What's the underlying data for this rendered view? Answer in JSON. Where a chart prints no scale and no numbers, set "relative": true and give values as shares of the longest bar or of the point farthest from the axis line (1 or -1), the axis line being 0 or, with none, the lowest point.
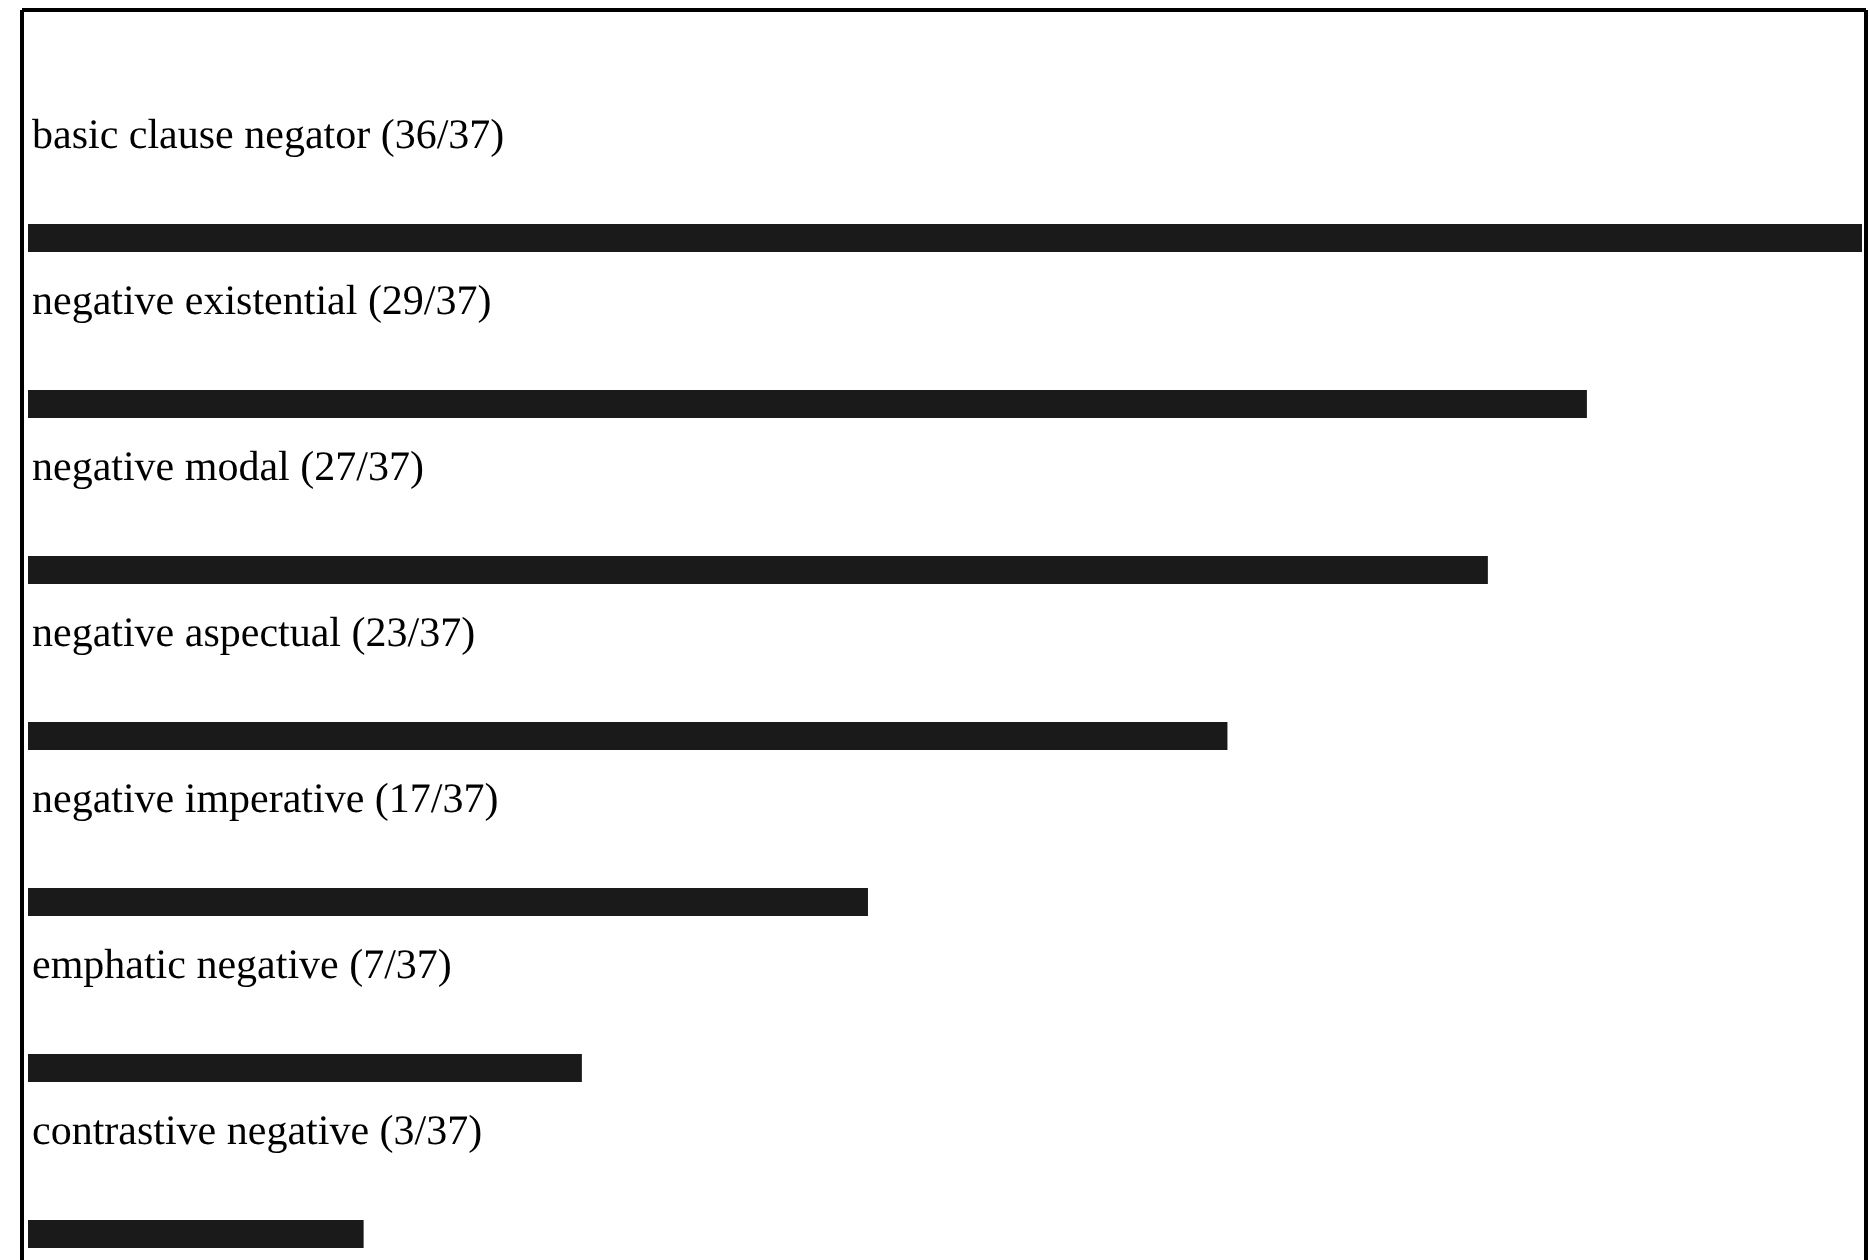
{
  "chart_data": {
    "type": "bar",
    "orientation": "horizontal",
    "relative": true,
    "color": "#1a1a1a",
    "categories": [
      "basic clause negator (36/37)",
      "negative existential (29/37)",
      "negative modal (27/37)",
      "negative aspectual (23/37)",
      "negative imperative (17/37)",
      "emphatic negative (7/37)",
      "contrastive negative (3/37)"
    ],
    "values": [
      1,
      0.85,
      0.796,
      0.654,
      0.458,
      0.302,
      0.183
    ]
  }
}
